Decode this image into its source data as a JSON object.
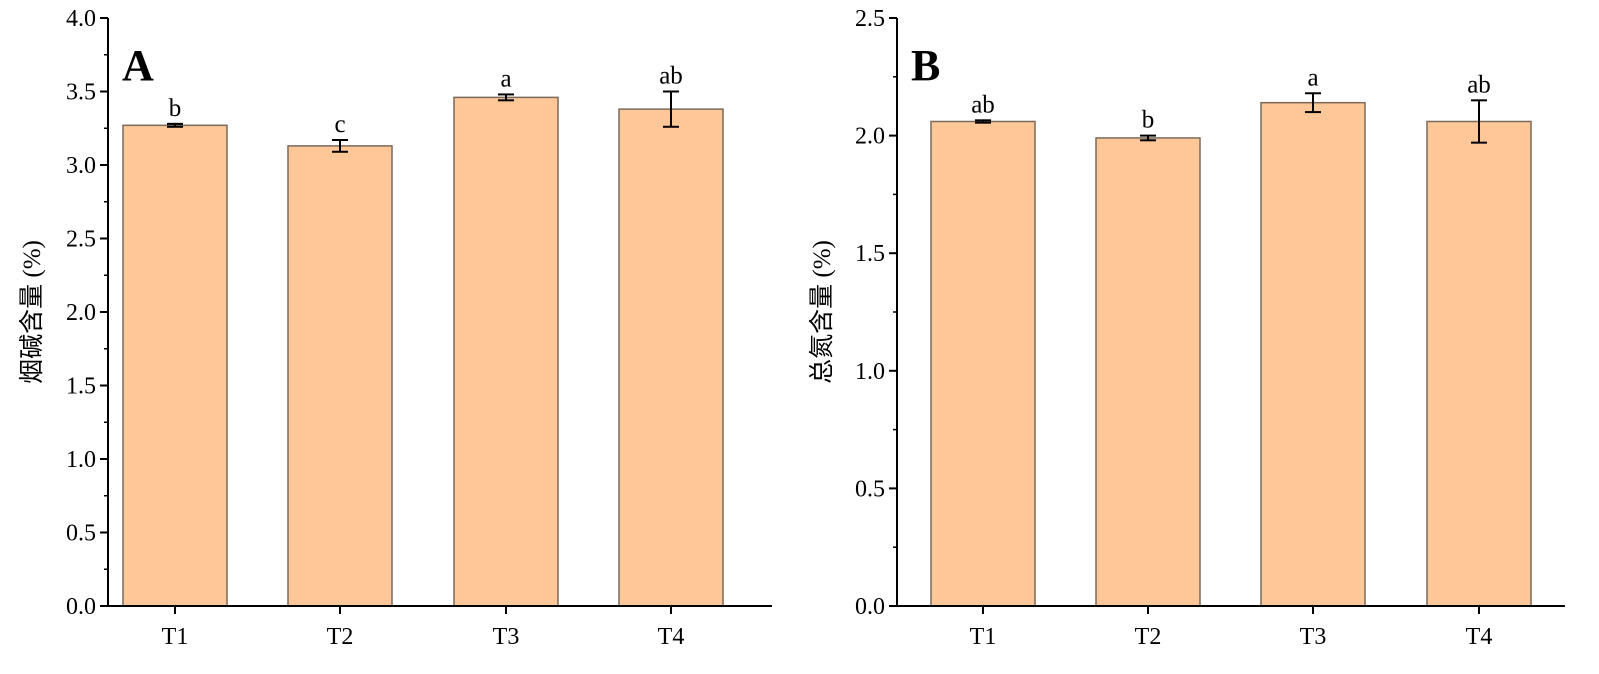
{
  "chart_data": [
    {
      "type": "bar",
      "panel_label": "A",
      "categories": [
        "T1",
        "T2",
        "T3",
        "T4"
      ],
      "values": [
        3.27,
        3.13,
        3.46,
        3.38
      ],
      "errors": [
        0.01,
        0.04,
        0.02,
        0.12
      ],
      "significance": [
        "b",
        "c",
        "a",
        "ab"
      ],
      "xlabel": "",
      "ylabel": "烟碱含量 (%)",
      "ylim": [
        0,
        4.0
      ],
      "yticks": [
        "0.0",
        "0.5",
        "1.0",
        "1.5",
        "2.0",
        "2.5",
        "3.0",
        "3.5",
        "4.0"
      ],
      "grid": false
    },
    {
      "type": "bar",
      "panel_label": "B",
      "categories": [
        "T1",
        "T2",
        "T3",
        "T4"
      ],
      "values": [
        2.06,
        1.99,
        2.14,
        2.06
      ],
      "errors": [
        0.005,
        0.01,
        0.04,
        0.09
      ],
      "significance": [
        "ab",
        "b",
        "a",
        "ab"
      ],
      "xlabel": "",
      "ylabel": "总氮含量 (%)",
      "ylim": [
        0,
        2.5
      ],
      "yticks": [
        "0.0",
        "0.5",
        "1.0",
        "1.5",
        "2.0",
        "2.5"
      ],
      "grid": false
    }
  ],
  "colors": {
    "bar_fill": "#FDC797",
    "bar_edge": "#7a6a5c",
    "axis": "#000000"
  }
}
